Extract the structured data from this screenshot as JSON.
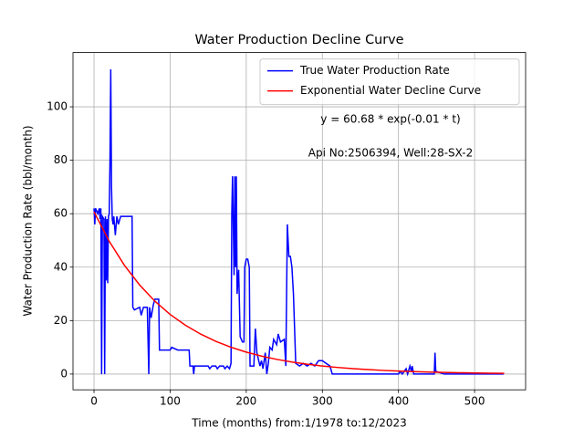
{
  "chart_data": {
    "type": "line",
    "title": "Water Production Decline Curve",
    "xlabel": "Time (months) from:1/1978 to:12/2023",
    "ylabel": "Water Production Rate (bbl/month)",
    "annotations": [
      "y = 60.68 * exp(-0.01 * t)",
      "Api No:2506394, Well:28-SX-2"
    ],
    "xlim": [
      -27.6,
      567
    ],
    "ylim": [
      -5.9,
      120.3
    ],
    "xticks": [
      0,
      100,
      200,
      300,
      400,
      500
    ],
    "yticks": [
      0,
      20,
      40,
      60,
      80,
      100
    ],
    "grid": true,
    "legend": "upper right",
    "series": [
      {
        "name": "True Water Production Rate",
        "color": "#0000ff",
        "x": [
          0,
          1,
          2,
          5,
          7,
          8,
          9,
          10,
          11,
          13,
          14,
          15,
          16,
          17,
          18,
          19,
          20,
          21,
          22,
          23,
          24,
          25,
          26,
          28,
          30,
          32,
          35,
          50,
          51,
          53,
          60,
          62,
          65,
          70,
          72,
          73,
          75,
          78,
          80,
          85,
          86,
          100,
          102,
          110,
          125,
          126,
          130,
          131,
          132,
          150,
          152,
          155,
          160,
          162,
          165,
          170,
          172,
          175,
          178,
          180,
          181,
          182,
          184,
          185,
          186,
          187,
          188,
          190,
          192,
          195,
          197,
          198,
          200,
          202,
          204,
          205,
          210,
          212,
          214,
          218,
          220,
          222,
          225,
          227,
          229,
          231,
          234,
          236,
          240,
          242,
          245,
          250,
          252,
          254,
          256,
          258,
          260,
          262,
          265,
          270,
          275,
          280,
          285,
          290,
          295,
          300,
          305,
          310,
          313,
          330,
          380,
          400,
          402,
          405,
          410,
          412,
          415,
          417,
          418,
          420,
          447,
          448,
          449,
          460,
          538
        ],
        "values": [
          62,
          56,
          62,
          60,
          62,
          58,
          62,
          0,
          59,
          58,
          0,
          59,
          35,
          58,
          34,
          59,
          60,
          80,
          114,
          70,
          58,
          56,
          59,
          52,
          59,
          56,
          59,
          59,
          25,
          24,
          25,
          22,
          25,
          25,
          0,
          25,
          21,
          26,
          28,
          28,
          9,
          9,
          10,
          9,
          9,
          3,
          3,
          0,
          3,
          3,
          2,
          3,
          3,
          2,
          3,
          3,
          2,
          3,
          2,
          4,
          60,
          74,
          37,
          74,
          40,
          74,
          30,
          39,
          14,
          12,
          12,
          40,
          43,
          43,
          40,
          3,
          3,
          17,
          8,
          3,
          5,
          2,
          8,
          0,
          4,
          10,
          9,
          13,
          11,
          15,
          12,
          13,
          3,
          56,
          44,
          44,
          40,
          30,
          4,
          3,
          4,
          3,
          4,
          3,
          5,
          5,
          4,
          3,
          0,
          0,
          0,
          0,
          1,
          0,
          2,
          0,
          3,
          1,
          3,
          0,
          0,
          8,
          1,
          0,
          0
        ]
      },
      {
        "name": "Exponential Water Decline Curve",
        "color": "#ff0000",
        "x": [
          0,
          20,
          40,
          60,
          80,
          100,
          120,
          140,
          160,
          180,
          200,
          220,
          240,
          260,
          280,
          300,
          320,
          340,
          360,
          380,
          400,
          420,
          440,
          460,
          480,
          500,
          520,
          539
        ],
        "values": [
          60.68,
          49.68,
          40.68,
          33.3,
          27.26,
          22.32,
          18.28,
          14.96,
          12.25,
          10.03,
          8.21,
          6.72,
          5.5,
          4.51,
          3.69,
          3.02,
          2.47,
          2.03,
          1.66,
          1.36,
          1.11,
          0.91,
          0.75,
          0.61,
          0.5,
          0.41,
          0.33,
          0.28
        ]
      }
    ]
  }
}
